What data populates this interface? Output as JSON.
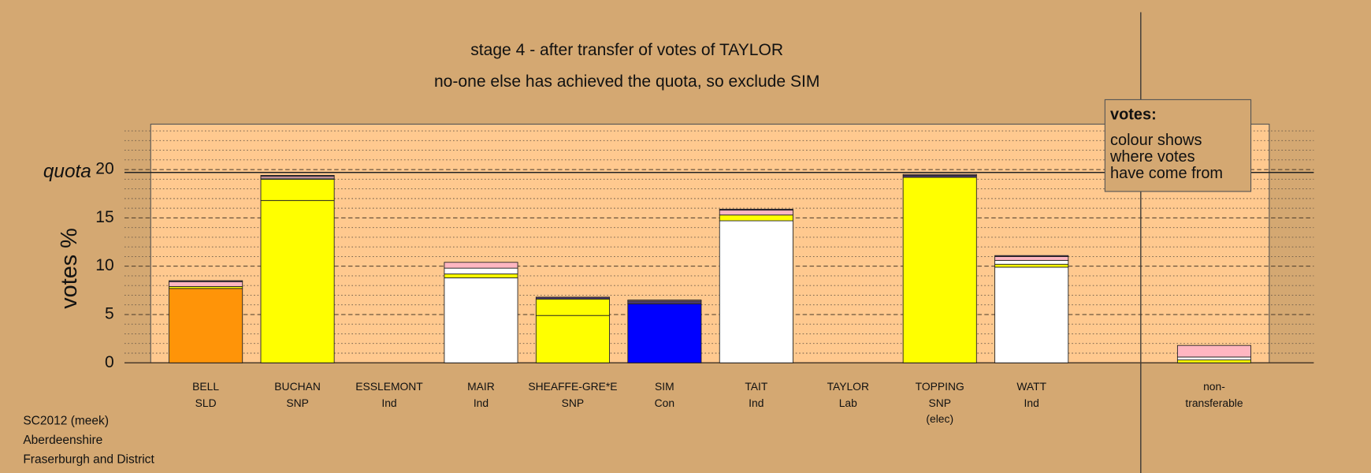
{
  "chart_data": {
    "type": "stacked-bar",
    "title": "stage 4 - after transfer of votes of TAYLOR",
    "subtitle": "no-one else has achieved the quota, so exclude SIM",
    "ylabel": "votes %",
    "ylim": [
      0,
      24.7
    ],
    "yticks": [
      0,
      5,
      10,
      15,
      20
    ],
    "minor_yticks": [
      1,
      2,
      3,
      4,
      6,
      7,
      8,
      9,
      11,
      12,
      13,
      14,
      16,
      17,
      18,
      19,
      21,
      22,
      23,
      24
    ],
    "quota": {
      "label": "quota",
      "value": 19.7
    },
    "legend": {
      "title": "votes:",
      "lines": [
        "colour shows",
        "where votes",
        "have come from"
      ]
    },
    "footer": [
      "SC2012 (meek)",
      "Aberdeenshire",
      "Fraserburgh and District"
    ],
    "bars": [
      {
        "name": "BELL",
        "party": "SLD",
        "segments": [
          {
            "color": "#ff9408",
            "value": 7.7
          },
          {
            "color": "#ffff00",
            "value": 0.2
          },
          {
            "color": "#ffb6c1",
            "value": 0.5
          },
          {
            "color": "#4b3a6b",
            "value": 0.1
          }
        ]
      },
      {
        "name": "BUCHAN",
        "party": "SNP",
        "segments": [
          {
            "color": "#ffff00",
            "value": 16.8
          },
          {
            "color": "#ffff00",
            "value": 2.2
          },
          {
            "color": "#ffffff",
            "value": 0.1
          },
          {
            "color": "#ffb6c1",
            "value": 0.2
          },
          {
            "color": "#4b3a6b",
            "value": 0.1
          }
        ]
      },
      {
        "name": "ESSLEMONT",
        "party": "Ind",
        "segments": []
      },
      {
        "name": "MAIR",
        "party": "Ind",
        "segments": [
          {
            "color": "#ffffff",
            "value": 8.8
          },
          {
            "color": "#ffff00",
            "value": 0.4
          },
          {
            "color": "#ffffff",
            "value": 0.6
          },
          {
            "color": "#ffb6c1",
            "value": 0.6
          }
        ]
      },
      {
        "name": "SHEAFFE-GRE*E",
        "party": "SNP",
        "segments": [
          {
            "color": "#ffff00",
            "value": 4.9
          },
          {
            "color": "#ffff00",
            "value": 1.7
          },
          {
            "color": "#4b3a6b",
            "value": 0.2
          }
        ]
      },
      {
        "name": "SIM",
        "party": "Con",
        "segments": [
          {
            "color": "#0000ff",
            "value": 6.1
          },
          {
            "color": "#4b3a6b",
            "value": 0.3
          },
          {
            "color": "#ffb6c1",
            "value": 0.1
          }
        ]
      },
      {
        "name": "TAIT",
        "party": "Ind",
        "segments": [
          {
            "color": "#ffffff",
            "value": 14.7
          },
          {
            "color": "#ffff00",
            "value": 0.6
          },
          {
            "color": "#ffb6c1",
            "value": 0.5
          },
          {
            "color": "#4b3a6b",
            "value": 0.1
          }
        ]
      },
      {
        "name": "TAYLOR",
        "party": "Lab",
        "segments": []
      },
      {
        "name": "TOPPING",
        "party": "SNP",
        "note": "(elec)",
        "segments": [
          {
            "color": "#ffff00",
            "value": 19.2
          },
          {
            "color": "#4b3a6b",
            "value": 0.2
          },
          {
            "color": "#ffb6c1",
            "value": 0.1
          }
        ]
      },
      {
        "name": "WATT",
        "party": "Ind",
        "segments": [
          {
            "color": "#ffffff",
            "value": 9.9
          },
          {
            "color": "#ffff00",
            "value": 0.3
          },
          {
            "color": "#ffffff",
            "value": 0.4
          },
          {
            "color": "#ffb6c1",
            "value": 0.4
          },
          {
            "color": "#4b3a6b",
            "value": 0.1
          }
        ]
      },
      {
        "name": "non-",
        "party": "transferable",
        "segments": [
          {
            "color": "#ffff00",
            "value": 0.3
          },
          {
            "color": "#ffffff",
            "value": 0.3
          },
          {
            "color": "#ffb6c1",
            "value": 1.2
          }
        ]
      }
    ]
  }
}
